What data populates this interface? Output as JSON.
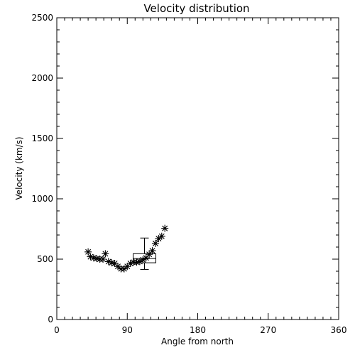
{
  "chart_data": {
    "type": "scatter",
    "title": "Velocity distribution",
    "xlabel": "Angle from north",
    "ylabel": "Velocity (km/s)",
    "xlim": [
      0,
      360
    ],
    "ylim": [
      0,
      2500
    ],
    "xticks": [
      "0",
      "90",
      "180",
      "270",
      "360"
    ],
    "yticks": [
      "0",
      "500",
      "1000",
      "1500",
      "2000",
      "2500"
    ],
    "grid": false,
    "marker": "asterisk",
    "points": {
      "x": [
        40,
        43,
        47,
        51,
        55,
        59,
        62,
        66,
        70,
        74,
        78,
        82,
        86,
        90,
        94,
        98,
        102,
        106,
        110,
        114,
        118,
        122,
        126,
        130,
        134,
        138
      ],
      "y": [
        560,
        520,
        510,
        505,
        500,
        500,
        545,
        480,
        470,
        465,
        440,
        420,
        420,
        440,
        465,
        475,
        475,
        480,
        495,
        510,
        540,
        570,
        630,
        670,
        690,
        755
      ]
    },
    "boxplot": {
      "x": 112,
      "whisker_low": 415,
      "q1": 470,
      "median": 505,
      "q3": 545,
      "whisker_high": 675
    }
  }
}
